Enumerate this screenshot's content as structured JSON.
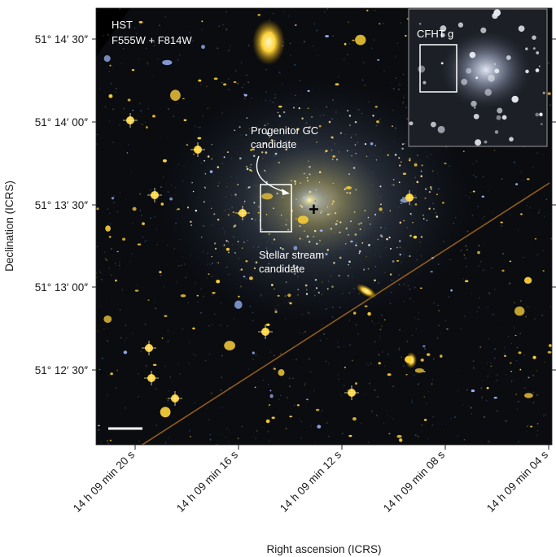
{
  "image": {
    "telescope_label": "HST",
    "filter_label": "F555W + F814W",
    "inset_label": "CFHT g",
    "annotation_progenitor_line1": "Progenitor GC",
    "annotation_progenitor_line2": "candidate",
    "annotation_stream_line1": "Stellar stream",
    "annotation_stream_line2": "candidate",
    "center_marker": "+",
    "colors": {
      "background": "#0a0c10",
      "star_gold": "#ffd23a",
      "star_blue": "#9fb8ff",
      "annotation": "#ffffff",
      "axis_text": "#1a1a1a"
    }
  },
  "axes": {
    "y_title": "Declination (ICRS)",
    "x_title": "Right ascension (ICRS)",
    "y_ticks": [
      "51° 14′ 30″",
      "51° 14′ 00″",
      "51° 13′ 30″",
      "51° 13′ 00″",
      "51° 12′ 30″"
    ],
    "x_ticks": [
      "14 h 09 min 20 s",
      "14 h 09 min 16 s",
      "14 h 09 min 12 s",
      "14 h 09 min 08 s",
      "14 h 09 min 04 s"
    ]
  }
}
